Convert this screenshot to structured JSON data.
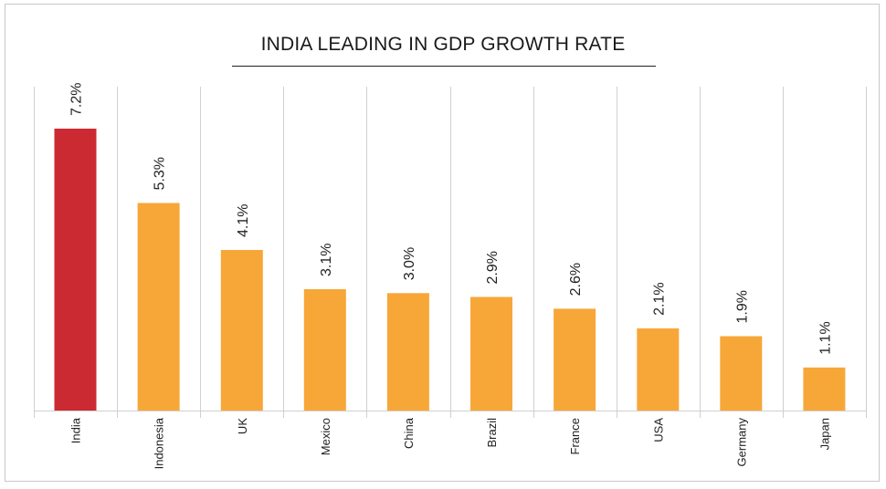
{
  "chart_data": {
    "type": "bar",
    "title": "INDIA LEADING IN GDP GROWTH RATE",
    "categories": [
      "India",
      "Indonesia",
      "UK",
      "Mexico",
      "China",
      "Brazil",
      "France",
      "USA",
      "Germany",
      "Japan"
    ],
    "values": [
      7.2,
      5.3,
      4.1,
      3.1,
      3.0,
      2.9,
      2.6,
      2.1,
      1.9,
      1.1
    ],
    "value_labels": [
      "7.2%",
      "5.3%",
      "4.1%",
      "3.1%",
      "3.0%",
      "2.9%",
      "2.6%",
      "2.1%",
      "1.9%",
      "1.1%"
    ],
    "ylim": [
      0,
      7.2
    ],
    "xlabel": "",
    "ylabel": "",
    "grid": "vertical",
    "colors": {
      "highlight": "#cc2a32",
      "bar": "#f7a738",
      "grid": "#d0d0d0"
    },
    "highlight_index": 0
  }
}
